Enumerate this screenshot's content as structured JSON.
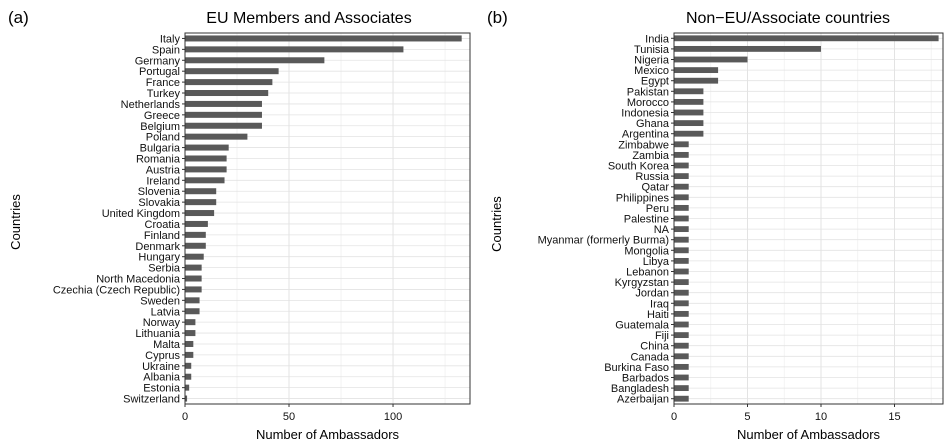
{
  "chart_data": [
    {
      "type": "bar",
      "orientation": "horizontal",
      "panel_label": "(a)",
      "title": "EU Members and Associates",
      "xlabel": "Number of Ambassadors",
      "ylabel": "Countries",
      "xlim": [
        0,
        137
      ],
      "xticks": [
        0,
        50,
        100
      ],
      "grid": true,
      "bar_color": "#595959",
      "categories": [
        "Italy",
        "Spain",
        "Germany",
        "Portugal",
        "France",
        "Turkey",
        "Netherlands",
        "Greece",
        "Belgium",
        "Poland",
        "Bulgaria",
        "Romania",
        "Austria",
        "Ireland",
        "Slovenia",
        "Slovakia",
        "United Kingdom",
        "Croatia",
        "Finland",
        "Denmark",
        "Hungary",
        "Serbia",
        "North Macedonia",
        "Czechia (Czech Republic)",
        "Sweden",
        "Latvia",
        "Norway",
        "Lithuania",
        "Malta",
        "Cyprus",
        "Ukraine",
        "Albania",
        "Estonia",
        "Switzerland"
      ],
      "values": [
        133,
        105,
        67,
        45,
        42,
        40,
        37,
        37,
        37,
        30,
        21,
        20,
        20,
        19,
        15,
        15,
        14,
        11,
        10,
        10,
        9,
        8,
        8,
        8,
        7,
        7,
        5,
        5,
        4,
        4,
        3,
        3,
        2,
        1
      ]
    },
    {
      "type": "bar",
      "orientation": "horizontal",
      "panel_label": "(b)",
      "title": "Non−EU/Associate countries",
      "xlabel": "Number of Ambassadors",
      "ylabel": "Countries",
      "xlim": [
        0,
        18.3
      ],
      "xticks": [
        0,
        5,
        10,
        15
      ],
      "grid": true,
      "bar_color": "#595959",
      "categories": [
        "India",
        "Tunisia",
        "Nigeria",
        "Mexico",
        "Egypt",
        "Pakistan",
        "Morocco",
        "Indonesia",
        "Ghana",
        "Argentina",
        "Zimbabwe",
        "Zambia",
        "South Korea",
        "Russia",
        "Qatar",
        "Philippines",
        "Peru",
        "Palestine",
        "NA",
        "Myanmar (formerly Burma)",
        "Mongolia",
        "Libya",
        "Lebanon",
        "Kyrgyzstan",
        "Jordan",
        "Iraq",
        "Haiti",
        "Guatemala",
        "Fiji",
        "China",
        "Canada",
        "Burkina Faso",
        "Barbados",
        "Bangladesh",
        "Azerbaijan"
      ],
      "values": [
        18,
        10,
        5,
        3,
        3,
        2,
        2,
        2,
        2,
        2,
        1,
        1,
        1,
        1,
        1,
        1,
        1,
        1,
        1,
        1,
        1,
        1,
        1,
        1,
        1,
        1,
        1,
        1,
        1,
        1,
        1,
        1,
        1,
        1,
        1
      ]
    }
  ]
}
